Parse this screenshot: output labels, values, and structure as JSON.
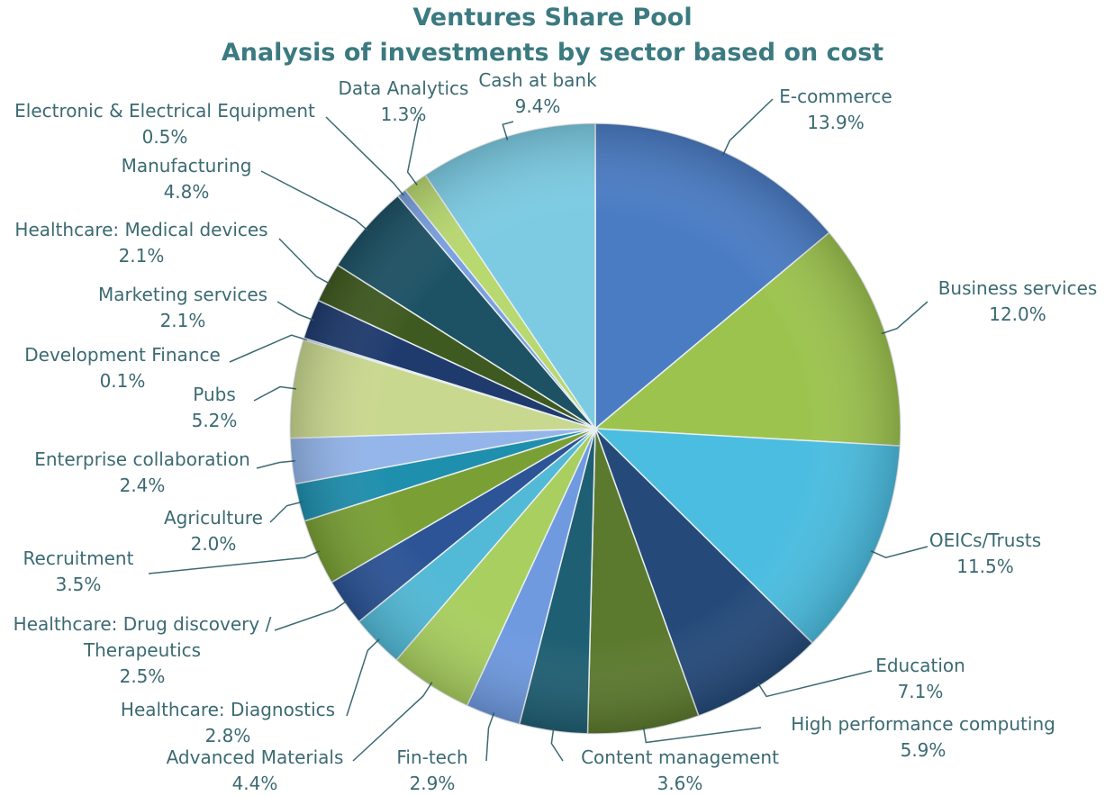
{
  "chart_data": {
    "type": "pie",
    "title": "Ventures Share Pool",
    "subtitle": "Analysis of investments by sector based on cost",
    "categories": [
      "E-commerce",
      "Business services",
      "OEICs/Trusts",
      "Education",
      "High performance computing",
      "Content management",
      "Fin-tech",
      "Advanced Materials",
      "Healthcare: Diagnostics",
      "Healthcare: Drug discovery / Therapeutics",
      "Recruitment",
      "Agriculture",
      "Enterprise collaboration",
      "Pubs",
      "Development Finance",
      "Marketing services",
      "Healthcare: Medical devices",
      "Manufacturing",
      "Electronic & Electrical Equipment",
      "Data Analytics",
      "Cash at bank"
    ],
    "values": [
      13.9,
      12.0,
      11.5,
      7.1,
      5.9,
      3.6,
      2.9,
      4.4,
      2.8,
      2.5,
      3.5,
      2.0,
      2.4,
      5.2,
      0.1,
      2.1,
      2.1,
      4.8,
      0.5,
      1.3,
      9.4
    ],
    "value_labels": [
      "13.9%",
      "12.0%",
      "11.5%",
      "7.1%",
      "5.9%",
      "3.6%",
      "2.9%",
      "4.4%",
      "2.8%",
      "2.5%",
      "3.5%",
      "2.0%",
      "2.4%",
      "5.2%",
      "0.1%",
      "2.1%",
      "2.1%",
      "4.8%",
      "0.5%",
      "1.3%",
      "9.4%"
    ],
    "colors": [
      "#4a7cc4",
      "#9dc34f",
      "#4bbde0",
      "#254a7a",
      "#5c7a2e",
      "#1f5f73",
      "#6f9ae0",
      "#a9cf60",
      "#52b9d6",
      "#2c5496",
      "#7aa035",
      "#1f8fae",
      "#93b5ea",
      "#c9d88f",
      "#8fd0e5",
      "#1f3b6e",
      "#3f5a20",
      "#1d5265",
      "#7aa0e0",
      "#b8d870",
      "#7ccbe3"
    ]
  }
}
